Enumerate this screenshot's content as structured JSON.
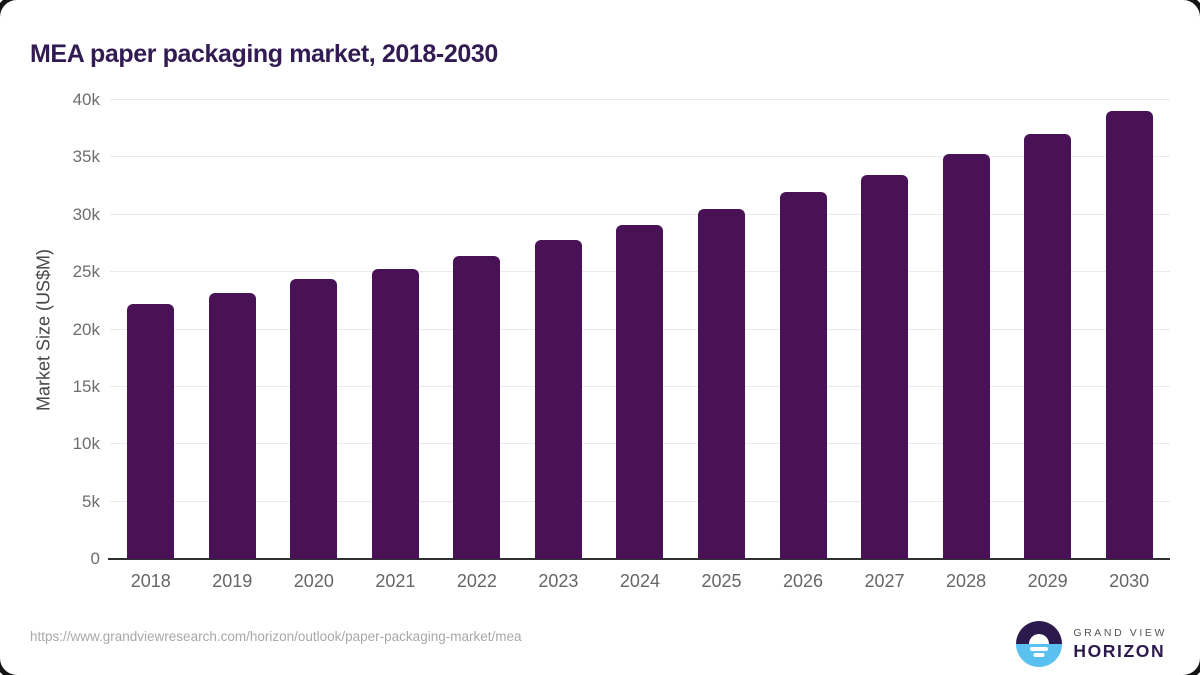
{
  "title": "MEA paper packaging market, 2018-2030",
  "source_url": "https://www.grandviewresearch.com/horizon/outlook/paper-packaging-market/mea",
  "logo": {
    "top_text": "GRAND VIEW",
    "bottom_text": "HORIZON",
    "circle_top_color": "#2d1a4d",
    "circle_bottom_color": "#5ac0ef"
  },
  "colors": {
    "bar": "#491256",
    "title": "#321b52",
    "gridline": "#eaeaea",
    "axis_line": "#2f2f2f",
    "tick_text": "#6e6e6e",
    "url_text": "#a8a8a8"
  },
  "chart_data": {
    "type": "bar",
    "title": "MEA paper packaging market, 2018-2030",
    "categories": [
      "2018",
      "2019",
      "2020",
      "2021",
      "2022",
      "2023",
      "2024",
      "2025",
      "2026",
      "2027",
      "2028",
      "2029",
      "2030"
    ],
    "values": [
      22200,
      23200,
      24400,
      25300,
      26400,
      27800,
      29100,
      30500,
      32000,
      33500,
      35300,
      37000,
      39000
    ],
    "xlabel": "",
    "ylabel": "Market Size (US$M)",
    "ylim": [
      0,
      40000
    ],
    "yticks": [
      0,
      5000,
      10000,
      15000,
      20000,
      25000,
      30000,
      35000,
      40000
    ],
    "ytick_labels": [
      "0",
      "5k",
      "10k",
      "15k",
      "20k",
      "25k",
      "30k",
      "35k",
      "40k"
    ],
    "grid": true,
    "legend": false,
    "bar_color": "#491256"
  }
}
